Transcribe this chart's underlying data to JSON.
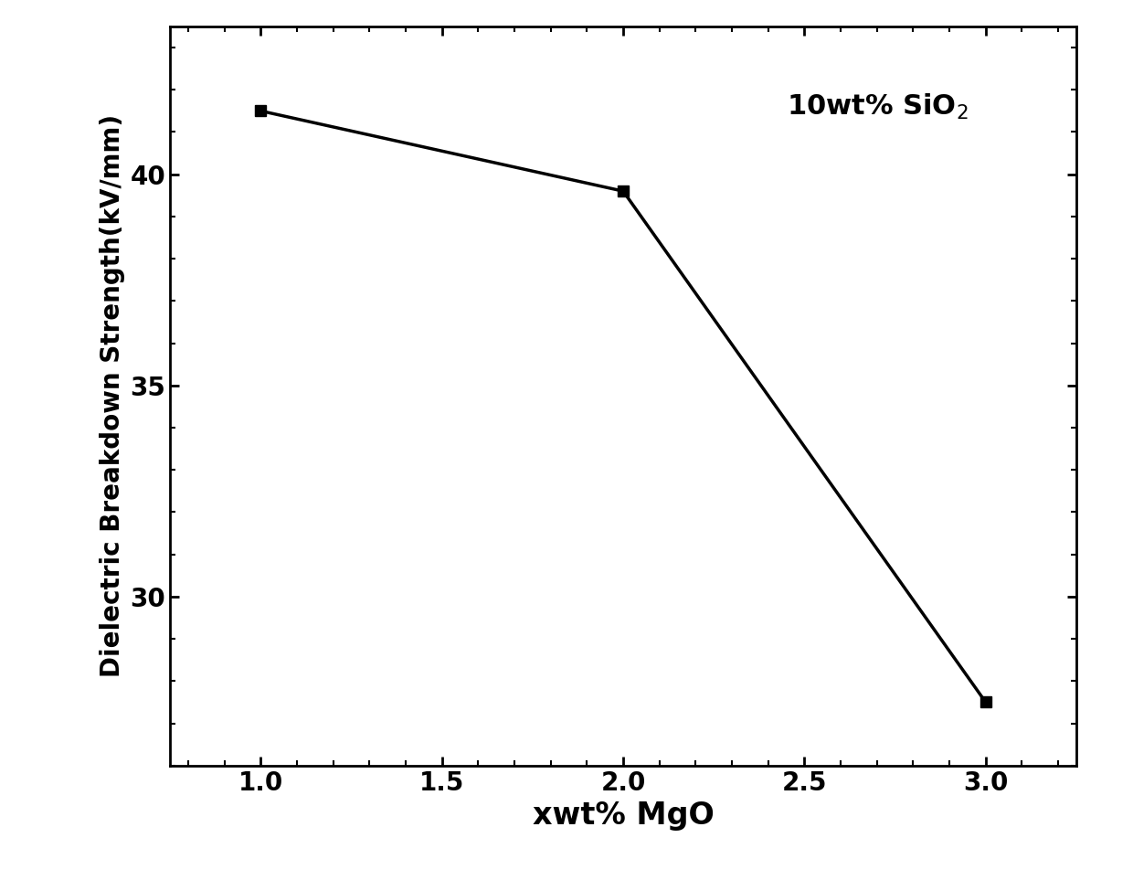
{
  "x": [
    1.0,
    2.0,
    3.0
  ],
  "y": [
    41.5,
    39.6,
    27.5
  ],
  "xlabel": "xwt% MgO",
  "ylabel": "Dielectric Breakdown Strength(kV/mm)",
  "annotation": "10wt% SiO$_2$",
  "xlim": [
    0.75,
    3.25
  ],
  "ylim": [
    26.0,
    43.5
  ],
  "xticks": [
    1.0,
    1.5,
    2.0,
    2.5,
    3.0
  ],
  "yticks": [
    30,
    35,
    40
  ],
  "line_color": "#000000",
  "marker": "s",
  "markersize": 9,
  "linewidth": 2.5,
  "xlabel_fontsize": 24,
  "ylabel_fontsize": 20,
  "tick_fontsize": 20,
  "annotation_fontsize": 22,
  "background_color": "#ffffff",
  "spine_linewidth": 2.0
}
